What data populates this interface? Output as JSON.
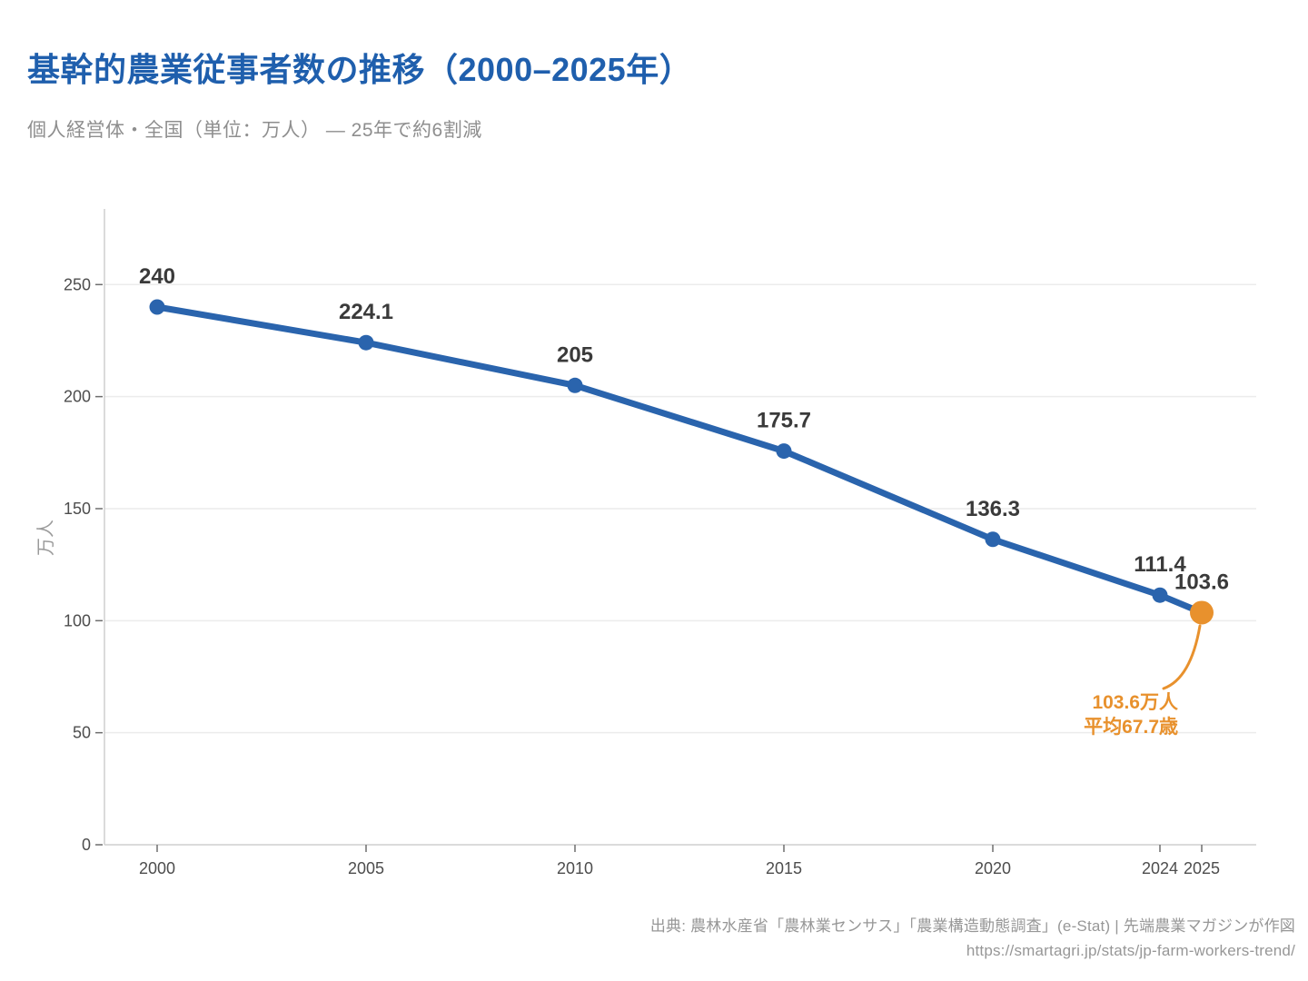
{
  "header": {
    "title": "基幹的農業従事者数の推移（2000–2025年）",
    "subtitle": "個人経営体・全国（単位：万人） — 25年で約6割減"
  },
  "chart_data": {
    "type": "line",
    "x": [
      2000,
      2005,
      2010,
      2015,
      2020,
      2024,
      2025
    ],
    "values": [
      240,
      224.1,
      205,
      175.7,
      136.3,
      111.4,
      103.6
    ],
    "point_labels": [
      "240",
      "224.1",
      "205",
      "175.7",
      "136.3",
      "111.4",
      "103.6"
    ],
    "title": "基幹的農業従事者数の推移（2000–2025年）",
    "subtitle": "個人経営体・全国（単位：万人） — 25年で約6割減",
    "xlabel": "",
    "ylabel": "万人",
    "yticks": [
      0,
      50,
      100,
      150,
      200,
      250
    ],
    "xtick_labels": [
      "2000",
      "2005",
      "2010",
      "2015",
      "2020",
      "2024",
      "2025"
    ],
    "ylim": [
      0,
      284
    ],
    "grid": true,
    "legend": false,
    "line_color": "#2a64ad",
    "highlight_color": "#e8912d",
    "highlight_index": 6,
    "annotation": {
      "lines": [
        "103.6万人",
        "平均67.7歳"
      ],
      "color": "#e8912d"
    }
  },
  "footer": {
    "source": "出典: 農林水産省「農林業センサス」「農業構造動態調査」(e-Stat) | 先端農業マガジンが作図",
    "url": "https://smartagri.jp/stats/jp-farm-workers-trend/"
  },
  "colors": {
    "title": "#1f5fad",
    "accent_blue": "#2a64ad",
    "accent_orange": "#e8912d",
    "grid": "#ececec",
    "axis": "#cfcfcf",
    "tick": "#6e6e6e"
  }
}
